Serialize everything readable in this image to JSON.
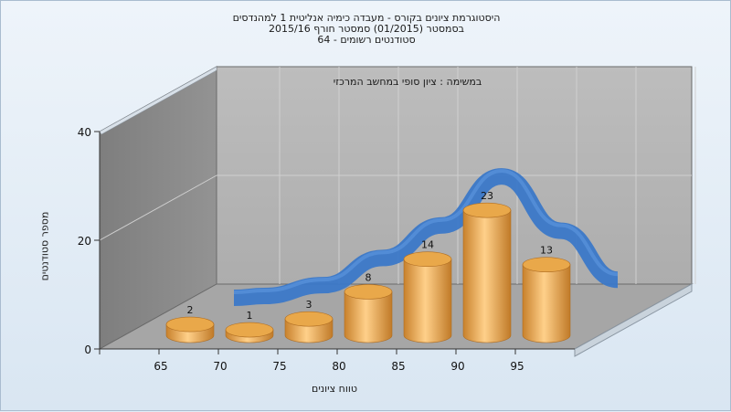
{
  "chart_data": {
    "type": "bar",
    "title_lines": [
      "היסטוגרמת ציונים בקורס - מעבדה כימיה אנליטית 1 למהנדסים",
      "בסמסטר  (01/2015)  סמסטר חורף 2015/16",
      "סטודנטים רשומים - 64"
    ],
    "subtitle": "במשימה : ציון סופי במחשב המרכזי",
    "xlabel": "טווח ציונים",
    "ylabel": "מספר סטודנטים",
    "categories": [
      "65",
      "70",
      "75",
      "80",
      "85",
      "90",
      "95"
    ],
    "values": [
      2,
      1,
      3,
      8,
      14,
      23,
      13
    ],
    "y_ticks": [
      "0",
      "20",
      "40"
    ],
    "ylim": [
      0,
      40
    ],
    "grid": true,
    "colors": {
      "bar": "#e9a84a",
      "bar_dark": "#c8812c",
      "bar_light": "#ffd08a",
      "curve": "#3b78c8",
      "wall_back": "#b3b3b3",
      "wall_left": "#8a8a8a",
      "floor": "#a3a3a3"
    }
  }
}
